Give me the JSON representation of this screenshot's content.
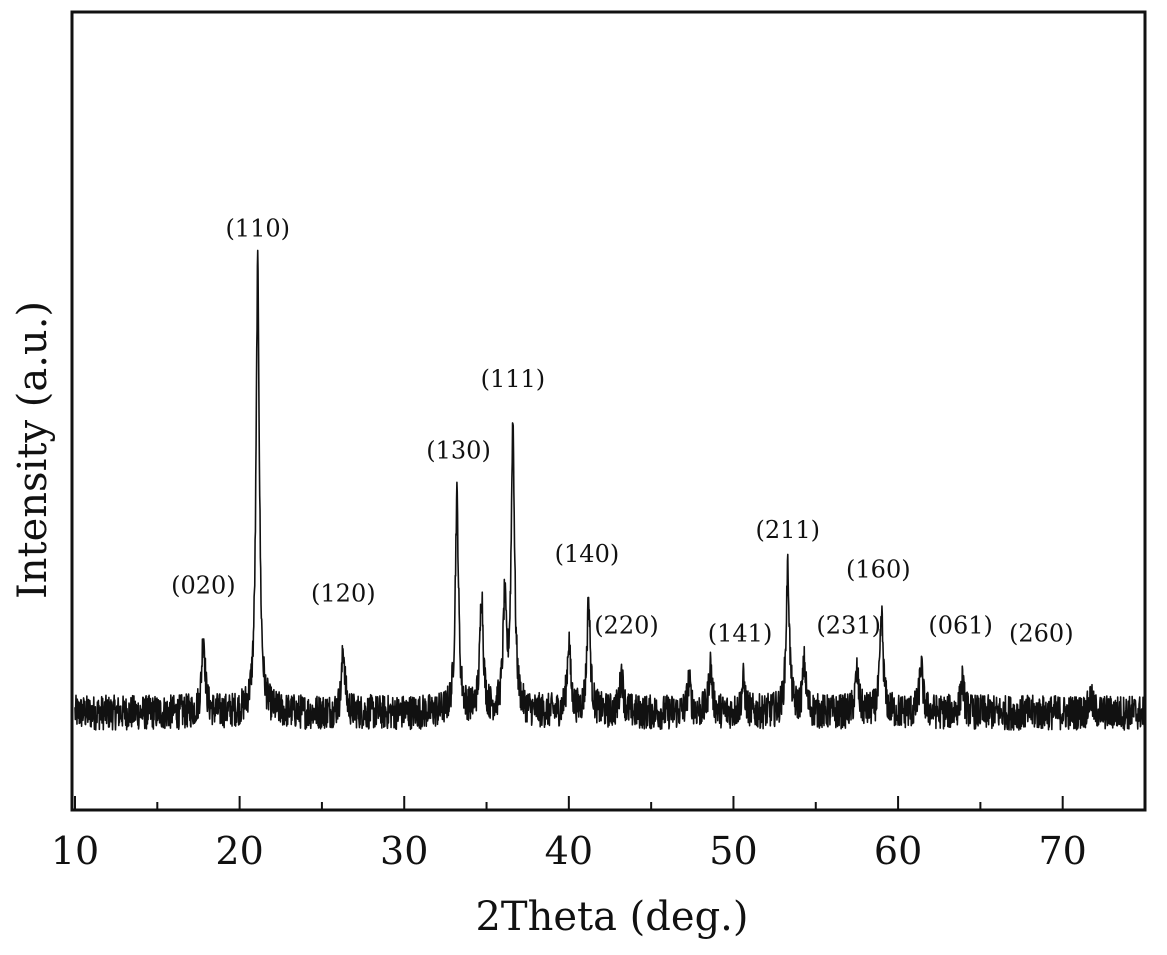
{
  "chart_data": {
    "type": "line",
    "xlabel": "2Theta (deg.)",
    "ylabel": "Intensity (a.u.)",
    "xlim": [
      10,
      75
    ],
    "ylim": [
      0,
      100
    ],
    "xticks": [
      10,
      20,
      30,
      40,
      50,
      60,
      70
    ],
    "yticks_shown": false,
    "grid": false,
    "legend": "none",
    "line_color": "#111111",
    "baseline": 12,
    "noise_amplitude": 2.2,
    "peaks": [
      {
        "x": 17.8,
        "y": 22
      },
      {
        "x": 21.1,
        "y": 68
      },
      {
        "x": 26.3,
        "y": 20
      },
      {
        "x": 33.2,
        "y": 39
      },
      {
        "x": 34.7,
        "y": 27
      },
      {
        "x": 36.1,
        "y": 25
      },
      {
        "x": 36.6,
        "y": 48
      },
      {
        "x": 40.0,
        "y": 21
      },
      {
        "x": 41.2,
        "y": 26
      },
      {
        "x": 43.2,
        "y": 17
      },
      {
        "x": 47.3,
        "y": 16
      },
      {
        "x": 48.6,
        "y": 18
      },
      {
        "x": 50.6,
        "y": 16
      },
      {
        "x": 53.3,
        "y": 30
      },
      {
        "x": 54.3,
        "y": 18
      },
      {
        "x": 57.5,
        "y": 17
      },
      {
        "x": 59.0,
        "y": 24
      },
      {
        "x": 61.4,
        "y": 18
      },
      {
        "x": 63.9,
        "y": 16
      },
      {
        "x": 71.7,
        "y": 14
      }
    ],
    "annotations": [
      {
        "text": "(020)",
        "x": 17.8,
        "y": 27
      },
      {
        "text": "(110)",
        "x": 21.1,
        "y": 72
      },
      {
        "text": "(120)",
        "x": 26.3,
        "y": 26
      },
      {
        "text": "(130)",
        "x": 33.3,
        "y": 44
      },
      {
        "text": "(111)",
        "x": 36.6,
        "y": 53
      },
      {
        "text": "(140)",
        "x": 41.1,
        "y": 31
      },
      {
        "text": "(220)",
        "x": 43.5,
        "y": 22
      },
      {
        "text": "(141)",
        "x": 50.4,
        "y": 21
      },
      {
        "text": "(211)",
        "x": 53.3,
        "y": 34
      },
      {
        "text": "(231)",
        "x": 57.0,
        "y": 22
      },
      {
        "text": "(160)",
        "x": 58.8,
        "y": 29
      },
      {
        "text": "(061)",
        "x": 63.8,
        "y": 22
      },
      {
        "text": "(260)",
        "x": 68.7,
        "y": 21
      }
    ]
  }
}
